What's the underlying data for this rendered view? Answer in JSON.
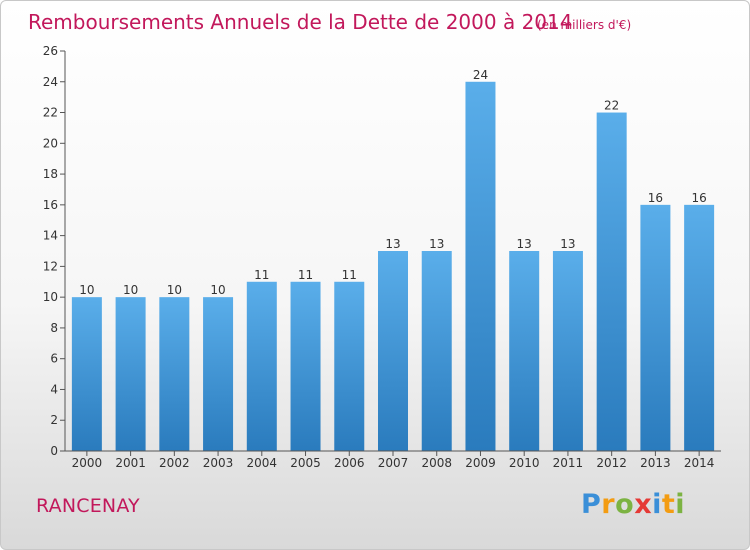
{
  "chart_data": {
    "type": "bar",
    "title": "Remboursements Annuels de la Dette de 2000 à 2014",
    "subtitle": "(en milliers d'€)",
    "categories": [
      "2000",
      "2001",
      "2002",
      "2003",
      "2004",
      "2005",
      "2006",
      "2007",
      "2008",
      "2009",
      "2010",
      "2011",
      "2012",
      "2013",
      "2014"
    ],
    "values": [
      10,
      10,
      10,
      10,
      11,
      11,
      11,
      13,
      13,
      24,
      13,
      13,
      22,
      16,
      16
    ],
    "ylim": [
      0,
      26
    ],
    "yticks": [
      0,
      2,
      4,
      6,
      8,
      10,
      12,
      14,
      16,
      18,
      20,
      22,
      24,
      26
    ],
    "xlabel": "",
    "ylabel": "",
    "grid": false,
    "bar_color_top": "#5aaeea",
    "bar_color_bottom": "#2a7bbd"
  },
  "location_label": "RANCENAY",
  "brand": {
    "letters": [
      "P",
      "r",
      "o",
      "x",
      "i",
      "t",
      "i"
    ],
    "colors": [
      "#3a8fd8",
      "#f39c12",
      "#7cb342",
      "#e53935",
      "#3a8fd8",
      "#f39c12",
      "#7cb342"
    ]
  }
}
